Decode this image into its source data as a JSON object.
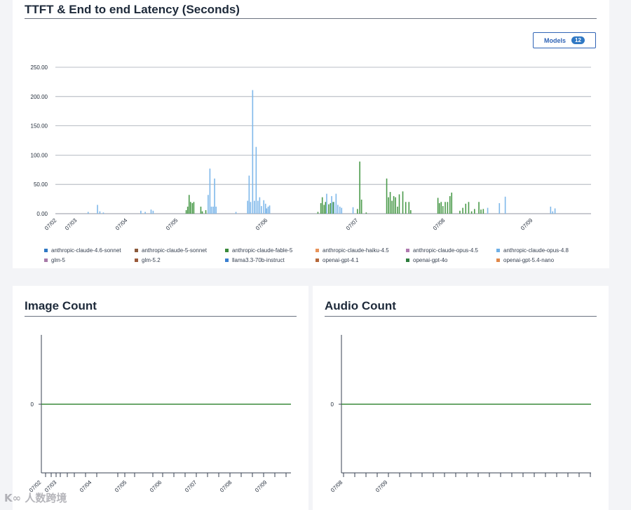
{
  "latency_card": {
    "title": "TTFT & End to end Latency (Seconds)",
    "models_button": {
      "label": "Models",
      "count": "12"
    }
  },
  "image_card": {
    "title": "Image Count"
  },
  "audio_card": {
    "title": "Audio Count"
  },
  "watermark": "K∞ 人数跨境",
  "colors": {
    "axis_blue": "#2f63b5",
    "grid": "#9ca3af",
    "line_green": "#3a8a3a"
  },
  "chart_data": [
    {
      "type": "bar",
      "title": "TTFT & End to end Latency (Seconds)",
      "ylim": [
        0,
        250
      ],
      "yticks": [
        "250.00",
        "200.00",
        "150.00",
        "100.00",
        "50.00",
        "0.00"
      ],
      "xticks": [
        "07/02",
        "07/03",
        "07/04",
        "07/05",
        "07/06",
        "07/07",
        "07/08",
        "07/09"
      ],
      "grid": true,
      "legend_position": "bottom",
      "legend": [
        {
          "name": "anthropic-claude-4.6-sonnet",
          "color": "#2f78c4"
        },
        {
          "name": "anthropic-claude-5-sonnet",
          "color": "#8b5a3c"
        },
        {
          "name": "anthropic-claude-fable-5",
          "color": "#3a8a3a"
        },
        {
          "name": "anthropic-claude-haiku-4.5",
          "color": "#e8945a"
        },
        {
          "name": "anthropic-claude-opus-4.5",
          "color": "#b07ab0"
        },
        {
          "name": "anthropic-claude-opus-4.8",
          "color": "#6fb0e6"
        },
        {
          "name": "glm-5",
          "color": "#a87aa8"
        },
        {
          "name": "glm-5.2",
          "color": "#9a5a3a"
        },
        {
          "name": "llama3.3-70b-instruct",
          "color": "#3a7fd0"
        },
        {
          "name": "openai-gpt-4.1",
          "color": "#b5683a"
        },
        {
          "name": "openai-gpt-4o",
          "color": "#2e7d3e"
        },
        {
          "name": "openai-gpt-5.4-nano",
          "color": "#e0884a"
        }
      ],
      "series": [
        {
          "name": "anthropic-claude-opus-4.8",
          "color": "#7fb8ea",
          "points": [
            {
              "x": 1.1,
              "y": 3
            },
            {
              "x": 1.42,
              "y": 15
            },
            {
              "x": 1.5,
              "y": 4
            },
            {
              "x": 1.62,
              "y": 2
            },
            {
              "x": 2.9,
              "y": 5
            },
            {
              "x": 3.05,
              "y": 3
            },
            {
              "x": 3.25,
              "y": 7
            },
            {
              "x": 3.32,
              "y": 5
            },
            {
              "x": 5.2,
              "y": 32
            },
            {
              "x": 5.26,
              "y": 77
            },
            {
              "x": 5.31,
              "y": 12
            },
            {
              "x": 5.37,
              "y": 12
            },
            {
              "x": 5.42,
              "y": 60
            },
            {
              "x": 5.47,
              "y": 12
            },
            {
              "x": 6.15,
              "y": 3
            },
            {
              "x": 6.55,
              "y": 22
            },
            {
              "x": 6.6,
              "y": 65
            },
            {
              "x": 6.65,
              "y": 20
            },
            {
              "x": 6.72,
              "y": 211
            },
            {
              "x": 6.78,
              "y": 22
            },
            {
              "x": 6.84,
              "y": 114
            },
            {
              "x": 6.9,
              "y": 22
            },
            {
              "x": 6.96,
              "y": 28
            },
            {
              "x": 7.02,
              "y": 13
            },
            {
              "x": 7.1,
              "y": 23
            },
            {
              "x": 7.16,
              "y": 17
            },
            {
              "x": 7.2,
              "y": 9
            },
            {
              "x": 7.25,
              "y": 12
            },
            {
              "x": 7.3,
              "y": 14
            },
            {
              "x": 9.25,
              "y": 34
            },
            {
              "x": 9.42,
              "y": 30
            },
            {
              "x": 9.5,
              "y": 20
            },
            {
              "x": 9.57,
              "y": 34
            },
            {
              "x": 9.63,
              "y": 15
            },
            {
              "x": 9.7,
              "y": 12
            },
            {
              "x": 9.76,
              "y": 10
            },
            {
              "x": 10.15,
              "y": 11
            },
            {
              "x": 14.75,
              "y": 10
            },
            {
              "x": 15.15,
              "y": 18
            },
            {
              "x": 15.35,
              "y": 29
            },
            {
              "x": 16.9,
              "y": 12
            },
            {
              "x": 16.97,
              "y": 4
            },
            {
              "x": 17.05,
              "y": 9
            }
          ]
        },
        {
          "name": "anthropic-claude-fable-5",
          "color": "#4a9a4a",
          "points": [
            {
              "x": 4.45,
              "y": 6
            },
            {
              "x": 4.5,
              "y": 12
            },
            {
              "x": 4.55,
              "y": 32
            },
            {
              "x": 4.6,
              "y": 20
            },
            {
              "x": 4.66,
              "y": 18
            },
            {
              "x": 4.71,
              "y": 20
            },
            {
              "x": 4.95,
              "y": 12
            },
            {
              "x": 5.0,
              "y": 4
            },
            {
              "x": 5.12,
              "y": 6
            },
            {
              "x": 8.95,
              "y": 3
            },
            {
              "x": 9.05,
              "y": 18
            },
            {
              "x": 9.1,
              "y": 28
            },
            {
              "x": 9.16,
              "y": 15
            },
            {
              "x": 9.21,
              "y": 20
            },
            {
              "x": 9.32,
              "y": 16
            },
            {
              "x": 9.38,
              "y": 18
            },
            {
              "x": 9.47,
              "y": 20
            },
            {
              "x": 10.3,
              "y": 8
            },
            {
              "x": 10.38,
              "y": 89
            },
            {
              "x": 10.44,
              "y": 24
            },
            {
              "x": 10.6,
              "y": 2
            },
            {
              "x": 11.3,
              "y": 60
            },
            {
              "x": 11.36,
              "y": 28
            },
            {
              "x": 11.42,
              "y": 37
            },
            {
              "x": 11.48,
              "y": 22
            },
            {
              "x": 11.54,
              "y": 30
            },
            {
              "x": 11.6,
              "y": 28
            },
            {
              "x": 11.67,
              "y": 12
            },
            {
              "x": 11.73,
              "y": 33
            },
            {
              "x": 11.85,
              "y": 38
            },
            {
              "x": 11.95,
              "y": 20
            },
            {
              "x": 12.06,
              "y": 20
            },
            {
              "x": 12.12,
              "y": 6
            },
            {
              "x": 13.05,
              "y": 27
            },
            {
              "x": 13.1,
              "y": 18
            },
            {
              "x": 13.16,
              "y": 20
            },
            {
              "x": 13.22,
              "y": 13
            },
            {
              "x": 13.3,
              "y": 20
            },
            {
              "x": 13.38,
              "y": 20
            },
            {
              "x": 13.46,
              "y": 30
            },
            {
              "x": 13.52,
              "y": 36
            },
            {
              "x": 13.8,
              "y": 5
            },
            {
              "x": 13.9,
              "y": 10
            },
            {
              "x": 14.0,
              "y": 17
            },
            {
              "x": 14.1,
              "y": 20
            },
            {
              "x": 14.2,
              "y": 4
            },
            {
              "x": 14.3,
              "y": 8
            },
            {
              "x": 14.45,
              "y": 20
            },
            {
              "x": 14.52,
              "y": 7
            },
            {
              "x": 14.6,
              "y": 8
            }
          ]
        }
      ]
    },
    {
      "type": "line",
      "title": "Image Count",
      "yticks": [
        "0"
      ],
      "xticks": [
        "07/02",
        "07/03",
        "07/04",
        "07/05",
        "07/06",
        "07/07",
        "07/08",
        "07/09"
      ],
      "series": [
        {
          "color": "#3a8a3a",
          "values": [
            0,
            0
          ]
        }
      ]
    },
    {
      "type": "line",
      "title": "Audio Count",
      "yticks": [
        "0"
      ],
      "xticks": [
        "07/08",
        "07/09"
      ],
      "series": [
        {
          "color": "#3a8a3a",
          "values": [
            0,
            0
          ]
        }
      ]
    }
  ]
}
